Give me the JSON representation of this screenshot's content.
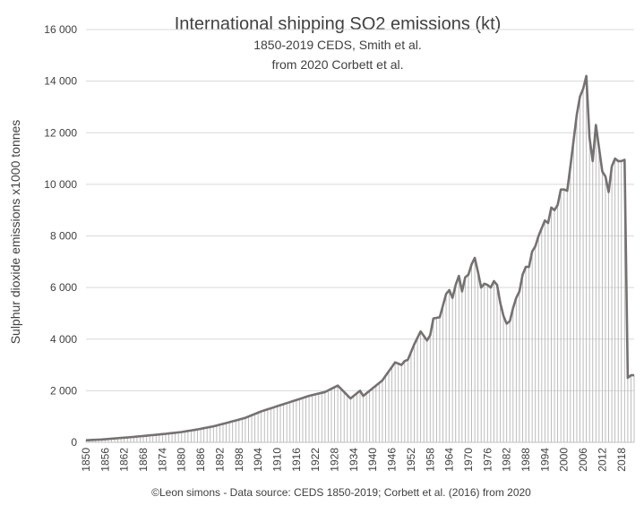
{
  "chart_data": {
    "type": "bar",
    "title": "International shipping SO2 emissions (kt)",
    "subtitle_line1": "1850-2019 CEDS, Smith et al.",
    "subtitle_line2": "from 2020 Corbett et al.",
    "ylabel": "Sulphur dioxide emissions  x1000 tonnes",
    "xlabel": "",
    "credit": "©Leon simons - Data source: CEDS 1850-2019; Corbett et al. (2016) from 2020",
    "ylim": [
      0,
      16000
    ],
    "xlim": [
      1850,
      2022
    ],
    "ytick_values": [
      0,
      2000,
      4000,
      6000,
      8000,
      10000,
      12000,
      14000,
      16000
    ],
    "ytick_labels": [
      "0",
      "2 000",
      "4 000",
      "6 000",
      "8 000",
      "10 000",
      "12 000",
      "14 000",
      "16 000"
    ],
    "xtick_values": [
      1850,
      1856,
      1862,
      1868,
      1874,
      1880,
      1886,
      1892,
      1898,
      1904,
      1910,
      1916,
      1922,
      1928,
      1934,
      1940,
      1946,
      1952,
      1958,
      1964,
      1970,
      1976,
      1982,
      1988,
      1994,
      2000,
      2006,
      2012,
      2018
    ],
    "xtick_labels": [
      "1850",
      "1856",
      "1862",
      "1868",
      "1874",
      "1880",
      "1886",
      "1892",
      "1898",
      "1904",
      "1910",
      "1916",
      "1922",
      "1928",
      "1934",
      "1940",
      "1946",
      "1952",
      "1958",
      "1964",
      "1970",
      "1976",
      "1982",
      "1988",
      "1994",
      "2000",
      "2006",
      "2012",
      "2018"
    ],
    "series": [
      {
        "name": "SO2 emissions",
        "key_years": [
          1850,
          1855,
          1860,
          1865,
          1870,
          1875,
          1880,
          1885,
          1890,
          1895,
          1900,
          1905,
          1910,
          1915,
          1920,
          1925,
          1929,
          1931,
          1933,
          1935,
          1936,
          1937,
          1939,
          1941,
          1943,
          1945,
          1947,
          1949,
          1950,
          1951,
          1953,
          1955,
          1957,
          1958,
          1959,
          1961,
          1962,
          1963,
          1964,
          1965,
          1966,
          1967,
          1968,
          1969,
          1970,
          1971,
          1972,
          1973,
          1974,
          1975,
          1976,
          1977,
          1978,
          1979,
          1980,
          1981,
          1982,
          1983,
          1984,
          1985,
          1986,
          1987,
          1988,
          1989,
          1990,
          1991,
          1992,
          1993,
          1994,
          1995,
          1996,
          1997,
          1998,
          1999,
          2000,
          2001,
          2002,
          2003,
          2004,
          2005,
          2006,
          2007,
          2008,
          2009,
          2010,
          2011,
          2012,
          2013,
          2014,
          2015,
          2016,
          2017,
          2018,
          2019,
          2020,
          2021,
          2022
        ],
        "key_values": [
          80,
          110,
          160,
          210,
          270,
          330,
          400,
          500,
          620,
          780,
          950,
          1200,
          1400,
          1600,
          1800,
          1950,
          2200,
          1950,
          1700,
          1900,
          2000,
          1800,
          2000,
          2200,
          2400,
          2750,
          3100,
          3000,
          3150,
          3200,
          3800,
          4300,
          3950,
          4150,
          4800,
          4850,
          5300,
          5750,
          5900,
          5600,
          6100,
          6450,
          5850,
          6400,
          6500,
          6900,
          7150,
          6600,
          6000,
          6150,
          6100,
          6000,
          6250,
          6100,
          5400,
          4900,
          4600,
          4700,
          5200,
          5600,
          5850,
          6500,
          6800,
          6800,
          7400,
          7600,
          8000,
          8300,
          8600,
          8500,
          9100,
          9000,
          9200,
          9800,
          9800,
          9750,
          10700,
          11700,
          12700,
          13400,
          13700,
          14200,
          11800,
          10900,
          12300,
          11400,
          10500,
          10300,
          9700,
          10700,
          11000,
          10900,
          10900,
          10950,
          2500,
          2600,
          2600
        ]
      }
    ]
  }
}
